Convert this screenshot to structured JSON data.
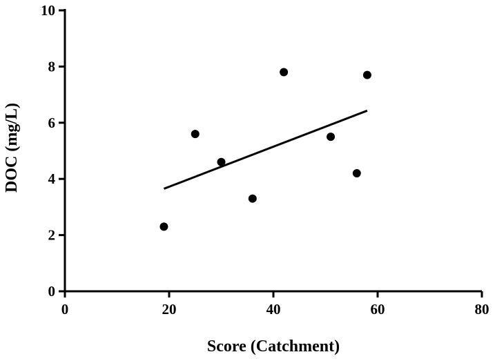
{
  "chart_data": {
    "type": "scatter",
    "title": "",
    "xlabel": "Score (Catchment)",
    "ylabel": "DOC (mg/L)",
    "xlim": [
      0,
      80
    ],
    "ylim": [
      0,
      10
    ],
    "xticks": [
      0,
      20,
      40,
      60,
      80
    ],
    "yticks": [
      0,
      2,
      4,
      6,
      8,
      10
    ],
    "xtick_labels": [
      "0",
      "20",
      "40",
      "60",
      "80"
    ],
    "ytick_labels": [
      "0",
      "2",
      "4",
      "6",
      "8",
      "10"
    ],
    "grid": false,
    "series": [
      {
        "name": "DOC",
        "x": [
          19,
          25,
          30,
          36,
          42,
          51,
          56,
          58
        ],
        "y": [
          2.3,
          5.6,
          4.6,
          3.3,
          7.8,
          5.5,
          4.2,
          7.7
        ]
      }
    ],
    "trendline": {
      "type": "linear",
      "x": [
        19,
        58
      ],
      "y": [
        3.65,
        6.43
      ]
    }
  }
}
